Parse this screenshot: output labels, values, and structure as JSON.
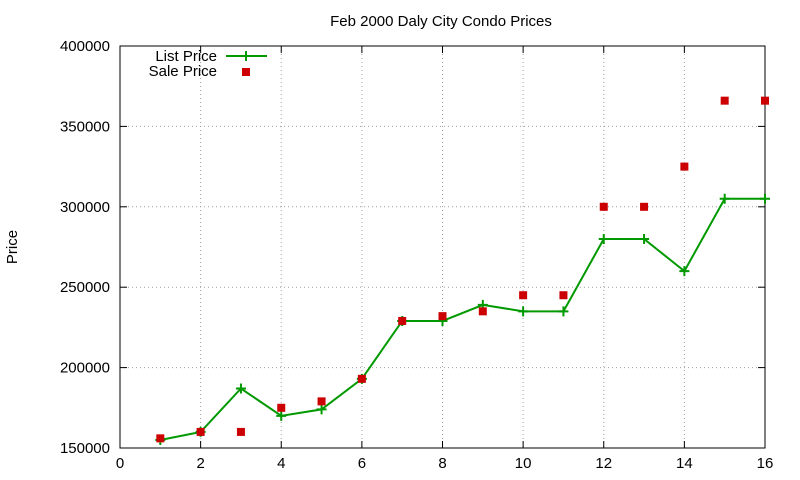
{
  "chart_data": {
    "type": "line",
    "title": "Feb 2000 Daly City Condo Prices",
    "xlabel": "",
    "ylabel": "Price",
    "xlim": [
      0,
      16
    ],
    "ylim": [
      150000,
      400000
    ],
    "x_ticks": [
      0,
      2,
      4,
      6,
      8,
      10,
      12,
      14,
      16
    ],
    "y_ticks": [
      150000,
      200000,
      250000,
      300000,
      350000,
      400000
    ],
    "grid": true,
    "legend_position": "top-left",
    "series": [
      {
        "name": "List Price",
        "style": "line with plus markers",
        "color": "#009900",
        "x": [
          1,
          2,
          3,
          4,
          5,
          6,
          7,
          8,
          9,
          10,
          11,
          12,
          13,
          14,
          15,
          16
        ],
        "y": [
          155000,
          160000,
          187000,
          170000,
          174000,
          193000,
          229000,
          229000,
          239000,
          235000,
          235000,
          280000,
          280000,
          260000,
          305000,
          305000
        ]
      },
      {
        "name": "Sale Price",
        "style": "square points",
        "color": "#cc0000",
        "x": [
          1,
          2,
          3,
          4,
          5,
          6,
          7,
          8,
          9,
          10,
          11,
          12,
          13,
          14,
          15,
          16
        ],
        "y": [
          156000,
          160000,
          160000,
          175000,
          179000,
          193000,
          229000,
          232000,
          235000,
          245000,
          245000,
          300000,
          300000,
          325000,
          366000,
          366000
        ]
      }
    ]
  }
}
